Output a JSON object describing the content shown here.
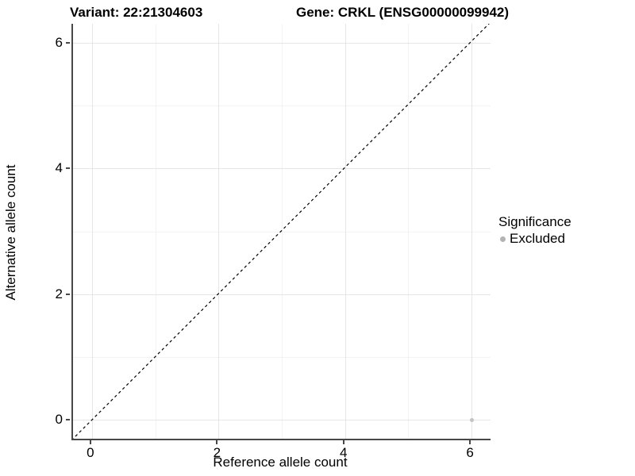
{
  "title": {
    "variant_label": "Variant: 22:21304603",
    "gene_label": "Gene: CRKL (ENSG00000099942)"
  },
  "axes": {
    "x": {
      "label": "Reference allele count"
    },
    "y": {
      "label": "Alternative allele count"
    }
  },
  "legend": {
    "title": "Significance",
    "items": [
      {
        "label": "Excluded",
        "color": "#b3b3b3"
      }
    ]
  },
  "colors": {
    "background": "#ffffff",
    "axis_line": "#474747",
    "grid_major": "#e6e6e6",
    "grid_minor": "#f3f3f3",
    "identity_line": "#000000",
    "point_excluded": "#c3c3c3",
    "text": "#000000"
  },
  "chart_data": {
    "type": "scatter",
    "title": "Variant: 22:21304603    Gene: CRKL (ENSG00000099942)",
    "xlabel": "Reference allele count",
    "ylabel": "Alternative allele count",
    "xlim": [
      -0.3,
      6.3
    ],
    "ylim": [
      -0.3,
      6.3
    ],
    "x_ticks": [
      0,
      2,
      4,
      6
    ],
    "y_ticks": [
      0,
      2,
      4,
      6
    ],
    "x_minor_ticks": [
      1,
      3,
      5
    ],
    "y_minor_ticks": [
      1,
      3,
      5
    ],
    "grid": true,
    "legend_position": "right",
    "series": [
      {
        "name": "Excluded",
        "color": "#c3c3c3",
        "points": [
          {
            "x": 6,
            "y": 0
          }
        ]
      }
    ],
    "reference_line": {
      "type": "identity",
      "equation": "y = x",
      "style": "dashed",
      "color": "#000000"
    }
  }
}
